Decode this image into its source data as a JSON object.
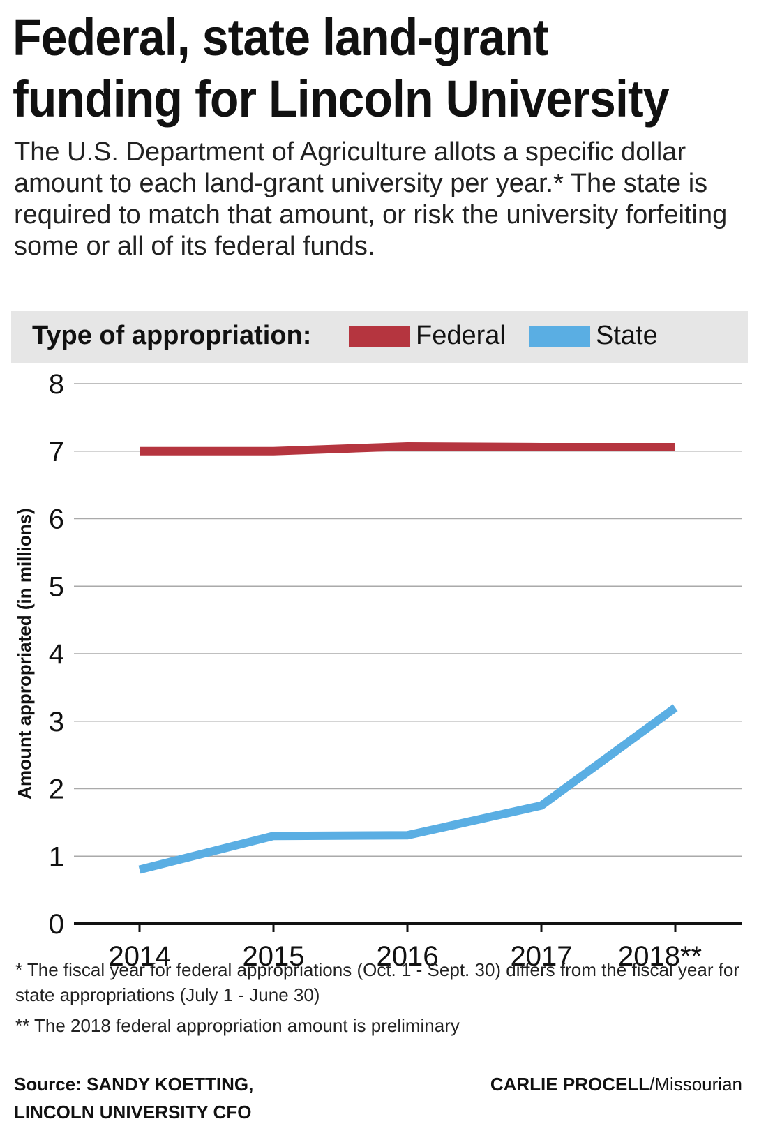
{
  "headline": "Federal, state land-grant funding for Lincoln University",
  "intro": "The U.S. Department of Agriculture allots a specific dollar amount to each land-grant university per year.* The state is required to match that amount, or risk the university forfeiting some or all of its federal funds.",
  "legend": {
    "label": "Type of appropriation:",
    "federal": "Federal",
    "state": "State"
  },
  "colors": {
    "federal": "#b5353f",
    "state": "#5aaee3",
    "axis": "#111111",
    "grid": "#aaaaaa"
  },
  "chart_data": {
    "type": "line",
    "title": "Federal, state land-grant funding for Lincoln University",
    "xlabel": "",
    "ylabel": "Amount appropriated (in millions)",
    "categories": [
      "2014",
      "2015",
      "2016",
      "2017",
      "2018**"
    ],
    "series": [
      {
        "name": "Federal",
        "values": [
          7.0,
          7.0,
          7.07,
          7.06,
          7.06
        ]
      },
      {
        "name": "State",
        "values": [
          0.8,
          1.3,
          1.31,
          1.75,
          3.2
        ]
      }
    ],
    "ylim": [
      0,
      8
    ],
    "yticks": [
      "0",
      "1",
      "2",
      "3",
      "4",
      "5",
      "6",
      "7",
      "8"
    ],
    "grid": true
  },
  "footnotes": {
    "one": "* The fiscal year for federal appropriations (Oct. 1 - Sept. 30) differs from the fiscal year for state appropriations (July 1 - June 30)",
    "two": "** The 2018 federal appropriation amount is preliminary"
  },
  "source": {
    "line1": "Source: SANDY KOETTING,",
    "line2": "LINCOLN UNIVERSITY CFO"
  },
  "credit": {
    "name": "CARLIE PROCELL",
    "outlet": "/Missourian"
  }
}
